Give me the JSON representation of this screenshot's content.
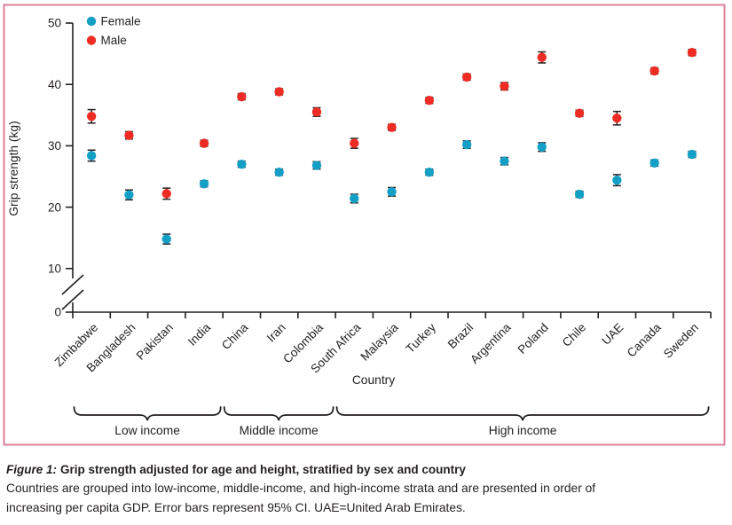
{
  "figure": {
    "label": "Figure 1:",
    "title": "Grip strength adjusted for age and height, stratified by sex and country",
    "caption_line1": "Countries are grouped into low-income, middle-income, and high-income strata and are presented in order of",
    "caption_line2": "increasing per capita GDP. Error bars represent 95% CI. UAE=United Arab Emirates."
  },
  "chart_data": {
    "type": "scatter",
    "title": "",
    "xlabel": "Country",
    "ylabel": "Grip strength (kg)",
    "ylim": [
      0,
      50
    ],
    "yticks": [
      0,
      10,
      20,
      30,
      40,
      50
    ],
    "axis_break_between": [
      0,
      10
    ],
    "grid": "off",
    "legend_position": "top-left-inside",
    "error_bars": "95% CI",
    "categories": [
      "Zimbabwe",
      "Bangladesh",
      "Pakistan",
      "India",
      "China",
      "Iran",
      "Colombia",
      "South Africa",
      "Malaysia",
      "Turkey",
      "Brazil",
      "Argentina",
      "Poland",
      "Chile",
      "UAE",
      "Canada",
      "Sweden"
    ],
    "series": [
      {
        "name": "Female",
        "color": "#14a0c6",
        "values": [
          28.4,
          22.0,
          14.8,
          23.8,
          27.0,
          25.7,
          26.8,
          21.4,
          22.5,
          25.7,
          30.2,
          27.5,
          29.8,
          22.1,
          24.4,
          27.2,
          28.6
        ],
        "ci": [
          0.9,
          0.8,
          0.8,
          0.5,
          0.5,
          0.5,
          0.6,
          0.7,
          0.7,
          0.5,
          0.6,
          0.6,
          0.7,
          0.5,
          0.9,
          0.5,
          0.5
        ]
      },
      {
        "name": "Male",
        "color": "#ee2c24",
        "values": [
          34.8,
          31.7,
          22.2,
          30.4,
          38.0,
          38.8,
          35.5,
          30.4,
          33.0,
          37.4,
          41.2,
          39.7,
          44.4,
          35.3,
          34.5,
          42.2,
          45.2
        ],
        "ci": [
          1.1,
          0.6,
          0.9,
          0.5,
          0.5,
          0.5,
          0.7,
          0.8,
          0.5,
          0.5,
          0.5,
          0.6,
          0.9,
          0.5,
          1.1,
          0.5,
          0.5
        ]
      }
    ],
    "groups": [
      {
        "label": "Low income",
        "from": "Zimbabwe",
        "to": "India"
      },
      {
        "label": "Middle income",
        "from": "China",
        "to": "Colombia"
      },
      {
        "label": "High income",
        "from": "South Africa",
        "to": "Sweden"
      }
    ],
    "colors": {
      "ink": "#231f20",
      "frame": "#dc8098",
      "female": "#14a0c6",
      "male": "#ee2c24"
    }
  }
}
